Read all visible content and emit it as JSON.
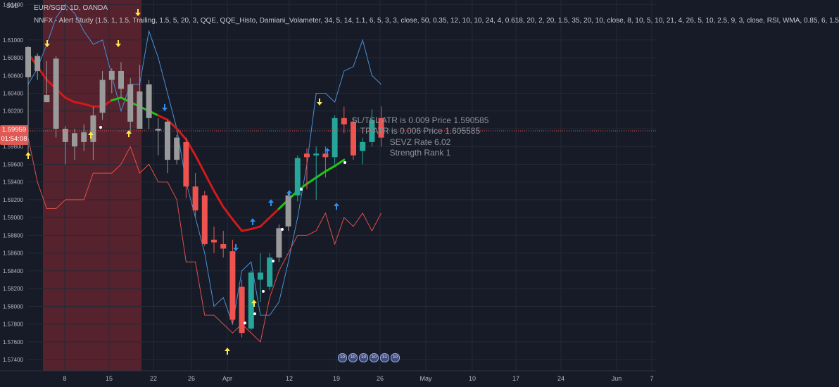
{
  "header": {
    "symbol_line": "EUR/SGD, 1D, OANDA",
    "study_line": "NNFX - Alert Study (1.5, 1, 1.5, Trailing, 1.5, 5, 20, 3, QQE, QQE_Histo, Damiani_Volameter, 34, 5, 14, 1.1, 6, 5, 3, 3, close, 50, 0.35, 12, 10, 10, 24, 4, 0.618, 20, 2, 20, 1.5, 35, 20, 10, close, 8, 10, 5, 10, 21, 4, 26, 5, 10, 2.5, 9, 3, close, RSI, WMA, 0.85, 6, 1.5"
  },
  "axis": {
    "currency": "SGD"
  },
  "current_price": {
    "value": "1.59959",
    "countdown": "01:54:08"
  },
  "info_box": {
    "line1": "SL/TSL ATR is 0.009  Price 1.590585",
    "line2": "TP ATR is 0.006  Price 1.605585",
    "line3": "SEVZ Rate 6.02",
    "line4": "Strength Rank 1"
  },
  "event_markers": [
    "10",
    "10",
    "10",
    "10",
    "31",
    "10"
  ],
  "colors": {
    "background": "#161b27",
    "grid": "#242a37",
    "bull": "#26a69a",
    "bear": "#ef5350",
    "neutral": "#9a9a9a",
    "baseline_up": "#22c415",
    "baseline_down": "#d21a1a",
    "upper_band": "#4a8fd6",
    "lower_band": "#e0504a",
    "arrow_yellow": "#ffe94a",
    "arrow_blue": "#2c8ef0",
    "shade": "#6b2632"
  },
  "chart_data": {
    "type": "candlestick",
    "ylim": [
      1.5725,
      1.6145
    ],
    "y_ticks": [
      "1.57400",
      "1.57600",
      "1.57800",
      "1.58000",
      "1.58200",
      "1.58400",
      "1.58600",
      "1.58800",
      "1.59000",
      "1.59200",
      "1.59400",
      "1.59600",
      "1.59800",
      "1.60000",
      "1.60200",
      "1.60400",
      "1.60600",
      "1.60800",
      "1.61000",
      "1.61400"
    ],
    "x_labels": [
      "8",
      "15",
      "22",
      "26",
      "Apr",
      "12",
      "19",
      "26",
      "May",
      "10",
      "17",
      "24",
      "Jun",
      "7"
    ],
    "candles": [
      {
        "o": 1.6058,
        "h": 1.6093,
        "l": 1.597,
        "c": 1.6092,
        "col": "neutral"
      },
      {
        "o": 1.6082,
        "h": 1.6085,
        "l": 1.6055,
        "c": 1.6065,
        "col": "neutral"
      },
      {
        "o": 1.6038,
        "h": 1.6076,
        "l": 1.603,
        "c": 1.603,
        "col": "neutral"
      },
      {
        "o": 1.6079,
        "h": 1.6082,
        "l": 1.599,
        "c": 1.6,
        "col": "neutral"
      },
      {
        "o": 1.6,
        "h": 1.6003,
        "l": 1.596,
        "c": 1.5985,
        "col": "neutral"
      },
      {
        "o": 1.598,
        "h": 1.6,
        "l": 1.5965,
        "c": 1.5995,
        "col": "neutral"
      },
      {
        "o": 1.5996,
        "h": 1.6005,
        "l": 1.5975,
        "c": 1.5985,
        "col": "neutral"
      },
      {
        "o": 1.5985,
        "h": 1.6025,
        "l": 1.5965,
        "c": 1.6015,
        "col": "neutral"
      },
      {
        "o": 1.6018,
        "h": 1.6065,
        "l": 1.601,
        "c": 1.6055,
        "col": "neutral"
      },
      {
        "o": 1.6055,
        "h": 1.6068,
        "l": 1.604,
        "c": 1.6065,
        "col": "neutral"
      },
      {
        "o": 1.6065,
        "h": 1.6075,
        "l": 1.6035,
        "c": 1.6045,
        "col": "neutral"
      },
      {
        "o": 1.605,
        "h": 1.6057,
        "l": 1.5995,
        "c": 1.6008,
        "col": "neutral"
      },
      {
        "o": 1.6042,
        "h": 1.6072,
        "l": 1.6,
        "c": 1.6,
        "col": "neutral"
      },
      {
        "o": 1.605,
        "h": 1.6055,
        "l": 1.6,
        "c": 1.6012,
        "col": "neutral"
      },
      {
        "o": 1.6,
        "h": 1.6012,
        "l": 1.597,
        "c": 1.5998,
        "col": "neutral"
      },
      {
        "o": 1.6008,
        "h": 1.601,
        "l": 1.595,
        "c": 1.5965,
        "col": "neutral"
      },
      {
        "o": 1.599,
        "h": 1.5993,
        "l": 1.596,
        "c": 1.5965,
        "col": "neutral"
      },
      {
        "o": 1.5985,
        "h": 1.599,
        "l": 1.5922,
        "c": 1.5935,
        "col": "bear"
      },
      {
        "o": 1.5935,
        "h": 1.595,
        "l": 1.59,
        "c": 1.5908,
        "col": "bear"
      },
      {
        "o": 1.5925,
        "h": 1.593,
        "l": 1.5868,
        "c": 1.587,
        "col": "bear"
      },
      {
        "o": 1.5875,
        "h": 1.589,
        "l": 1.586,
        "c": 1.5872,
        "col": "bear"
      },
      {
        "o": 1.587,
        "h": 1.5885,
        "l": 1.5855,
        "c": 1.5865,
        "col": "bear"
      },
      {
        "o": 1.5862,
        "h": 1.5875,
        "l": 1.578,
        "c": 1.5785,
        "col": "bear"
      },
      {
        "o": 1.5822,
        "h": 1.583,
        "l": 1.5765,
        "c": 1.577,
        "col": "bear"
      },
      {
        "o": 1.5775,
        "h": 1.584,
        "l": 1.5773,
        "c": 1.5838,
        "col": "bull"
      },
      {
        "o": 1.5838,
        "h": 1.586,
        "l": 1.5805,
        "c": 1.583,
        "col": "bull"
      },
      {
        "o": 1.5822,
        "h": 1.586,
        "l": 1.5818,
        "c": 1.5855,
        "col": "bull"
      },
      {
        "o": 1.5855,
        "h": 1.5892,
        "l": 1.585,
        "c": 1.5888,
        "col": "neutral"
      },
      {
        "o": 1.589,
        "h": 1.5928,
        "l": 1.5885,
        "c": 1.5925,
        "col": "neutral"
      },
      {
        "o": 1.5925,
        "h": 1.597,
        "l": 1.5918,
        "c": 1.5967,
        "col": "bull"
      },
      {
        "o": 1.5968,
        "h": 1.5978,
        "l": 1.5932,
        "c": 1.5972,
        "col": "bear"
      },
      {
        "o": 1.5972,
        "h": 1.598,
        "l": 1.592,
        "c": 1.597,
        "col": "bull"
      },
      {
        "o": 1.5972,
        "h": 1.598,
        "l": 1.5945,
        "c": 1.5968,
        "col": "bear"
      },
      {
        "o": 1.5968,
        "h": 1.6015,
        "l": 1.596,
        "c": 1.6012,
        "col": "bull"
      },
      {
        "o": 1.6012,
        "h": 1.6025,
        "l": 1.5995,
        "c": 1.6005,
        "col": "bear"
      },
      {
        "o": 1.6008,
        "h": 1.6012,
        "l": 1.5965,
        "c": 1.597,
        "col": "bear"
      },
      {
        "o": 1.5975,
        "h": 1.599,
        "l": 1.596,
        "c": 1.5985,
        "col": "bull"
      },
      {
        "o": 1.5985,
        "h": 1.6022,
        "l": 1.598,
        "c": 1.601,
        "col": "bull"
      },
      {
        "o": 1.6012,
        "h": 1.6025,
        "l": 1.598,
        "c": 1.599,
        "col": "bear"
      }
    ],
    "baseline": [
      1.6085,
      1.607,
      1.6055,
      1.6045,
      1.6035,
      1.603,
      1.6028,
      1.6025,
      1.6025,
      1.6032,
      1.6035,
      1.603,
      1.6025,
      1.602,
      1.6015,
      1.601,
      1.6,
      1.5988,
      1.597,
      1.595,
      1.593,
      1.5912,
      1.5898,
      1.5885,
      1.5887,
      1.589,
      1.59,
      1.591,
      1.592,
      1.593,
      1.5938,
      1.5945,
      1.5952,
      1.5958,
      1.5965
    ],
    "baseline_color_switch": [
      [
        0,
        "down"
      ],
      [
        9,
        "up"
      ],
      [
        14,
        "down"
      ],
      [
        27,
        "up"
      ]
    ],
    "upper_band": [
      1.605,
      1.6068,
      1.6095,
      1.6125,
      1.614,
      1.613,
      1.611,
      1.6095,
      1.61,
      1.606,
      1.602,
      1.605,
      1.605,
      1.611,
      1.608,
      1.604,
      1.6,
      1.594,
      1.59,
      1.586,
      1.58,
      1.581,
      1.578,
      1.584,
      1.585,
      1.579,
      1.579,
      1.5805,
      1.585,
      1.59,
      1.596,
      1.604,
      1.604,
      1.603,
      1.6065,
      1.607,
      1.61,
      1.606,
      1.605
    ],
    "lower_band": [
      1.599,
      1.594,
      1.591,
      1.591,
      1.592,
      1.592,
      1.592,
      1.595,
      1.595,
      1.595,
      1.596,
      1.598,
      1.595,
      1.596,
      1.594,
      1.594,
      1.592,
      1.585,
      1.585,
      1.579,
      1.579,
      1.578,
      1.577,
      1.578,
      1.577,
      1.576,
      1.581,
      1.584,
      1.586,
      1.588,
      1.588,
      1.5885,
      1.5905,
      1.587,
      1.59,
      1.589,
      1.5905,
      1.5885,
      1.5905
    ]
  }
}
